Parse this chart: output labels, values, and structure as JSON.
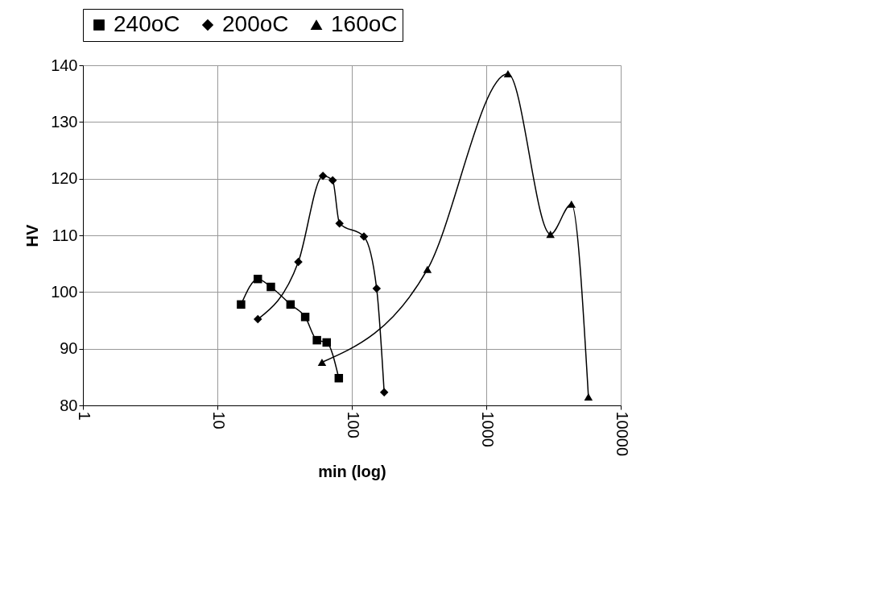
{
  "chart_data": {
    "type": "line",
    "xlabel": "min (log)",
    "ylabel": "HV",
    "log": "x",
    "xlim": [
      1,
      10000
    ],
    "xticks": [
      1,
      10,
      100,
      1000,
      10000
    ],
    "ylim": [
      80,
      140
    ],
    "yticks": [
      80,
      90,
      100,
      110,
      120,
      130,
      140
    ],
    "grid": true,
    "legend": "top",
    "line_style": "solid",
    "series": [
      {
        "name": "240oC",
        "color": "#000000",
        "marker": "square",
        "x": [
          15,
          20,
          25,
          35,
          45,
          55,
          65,
          80
        ],
        "values": [
          97.8,
          102.3,
          100.9,
          97.8,
          95.6,
          91.5,
          91.1,
          84.8
        ]
      },
      {
        "name": "200oC",
        "color": "#000000",
        "marker": "diamond",
        "x": [
          20,
          40,
          61,
          72,
          81,
          123,
          153,
          174
        ],
        "values": [
          95.2,
          105.3,
          120.5,
          119.7,
          112.1,
          109.8,
          100.6,
          82.3
        ]
      },
      {
        "name": "160oC",
        "color": "#000000",
        "marker": "triangle",
        "x": [
          60,
          365,
          1450,
          3000,
          4300,
          5750
        ],
        "values": [
          87.6,
          104.0,
          138.5,
          110.2,
          115.5,
          81.5
        ]
      }
    ]
  }
}
